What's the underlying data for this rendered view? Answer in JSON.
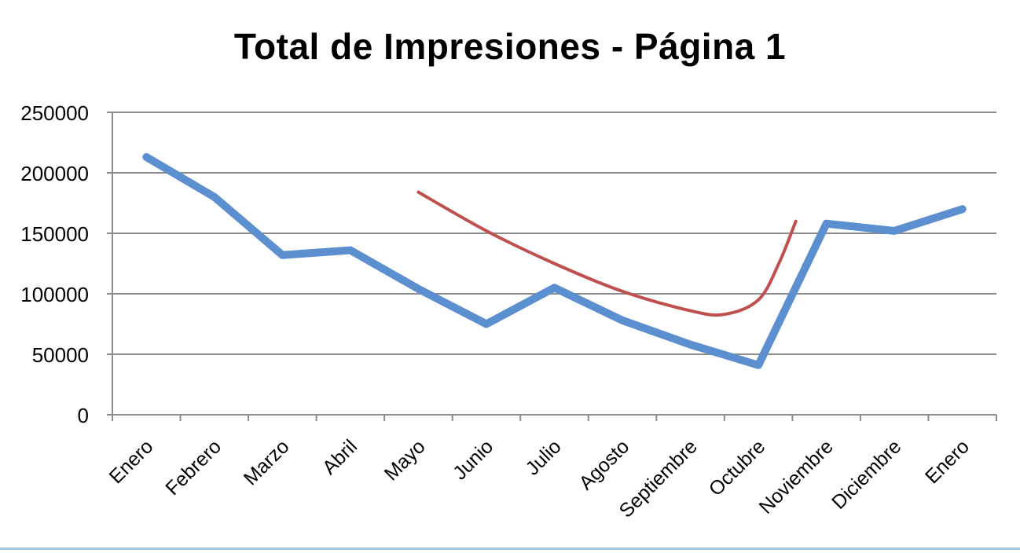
{
  "chart_data": {
    "type": "line",
    "title": "Total de Impresiones - Página 1",
    "xlabel": "",
    "ylabel": "",
    "categories": [
      "Enero",
      "Febrero",
      "Marzo",
      "Abril",
      "Mayo",
      "Junio",
      "Julio",
      "Agosto",
      "Septiembre",
      "Octubre",
      "Noviembre",
      "Diciembre",
      "Enero"
    ],
    "ylim": [
      0,
      250000
    ],
    "yticks": [
      0,
      50000,
      100000,
      150000,
      200000,
      250000
    ],
    "grid": true,
    "legend": "none",
    "series": [
      {
        "color": "#5b8fcf",
        "values": [
          213000,
          180000,
          132000,
          136000,
          104000,
          75000,
          105000,
          78000,
          58000,
          41000,
          158000,
          152000,
          170000
        ]
      }
    ],
    "annotations": [
      {
        "type": "hand-drawn-trend-curve",
        "color": "#c0504d",
        "x": [
          4.0,
          5.0,
          6.0,
          7.0,
          8.0,
          8.5,
          9.0,
          9.3,
          9.55
        ],
        "y": [
          184000,
          152000,
          125000,
          102000,
          86000,
          83000,
          95000,
          125000,
          160000
        ]
      }
    ]
  }
}
